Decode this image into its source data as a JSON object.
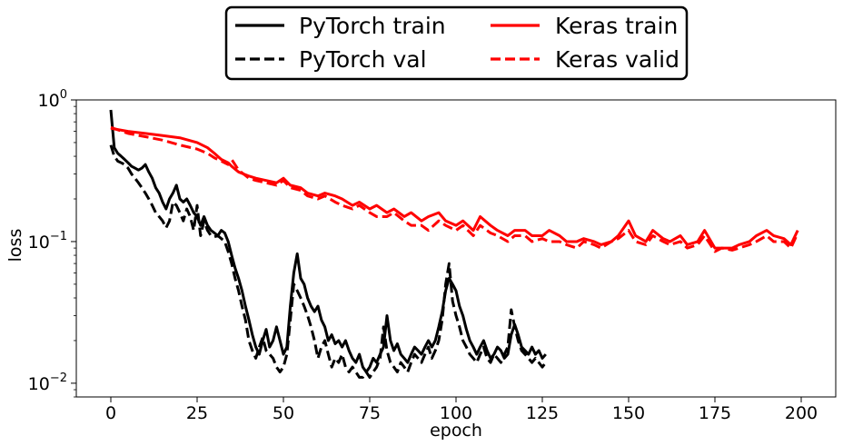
{
  "chart_data": {
    "type": "line",
    "title": "",
    "xlabel": "epoch",
    "ylabel": "loss",
    "xlim": [
      -10,
      210
    ],
    "ylim": [
      0.008,
      1.0
    ],
    "yscale": "log",
    "grid": false,
    "legend_position": "top-center",
    "x_ticks": [
      0,
      25,
      50,
      75,
      100,
      125,
      150,
      175,
      200
    ],
    "x_tick_labels": [
      "0",
      "25",
      "50",
      "75",
      "100",
      "125",
      "150",
      "175",
      "200"
    ],
    "y_ticks": [
      0.01,
      0.1,
      1.0
    ],
    "y_tick_labels": [
      {
        "base": "10",
        "exp": "−2"
      },
      {
        "base": "10",
        "exp": "−1"
      },
      {
        "base": "10",
        "exp": "0"
      }
    ],
    "series": [
      {
        "name": "PyTorch train",
        "color": "#000000",
        "dash": "solid",
        "x": [
          0,
          1,
          2,
          3,
          4,
          5,
          6,
          7,
          8,
          9,
          10,
          11,
          12,
          13,
          14,
          15,
          16,
          17,
          18,
          19,
          20,
          21,
          22,
          23,
          24,
          25,
          26,
          27,
          28,
          29,
          30,
          31,
          32,
          33,
          34,
          35,
          36,
          37,
          38,
          39,
          40,
          41,
          42,
          43,
          44,
          45,
          46,
          47,
          48,
          49,
          50,
          51,
          52,
          53,
          54,
          55,
          56,
          57,
          58,
          59,
          60,
          61,
          62,
          63,
          64,
          65,
          66,
          67,
          68,
          69,
          70,
          71,
          72,
          73,
          74,
          75,
          76,
          77,
          78,
          79,
          80,
          81,
          82,
          83,
          84,
          85,
          86,
          87,
          88,
          89,
          90,
          91,
          92,
          93,
          94,
          95,
          96,
          97,
          98,
          99,
          100,
          101,
          102,
          103,
          104,
          105,
          106,
          107,
          108,
          109,
          110,
          111,
          112,
          113,
          114,
          115,
          116,
          117,
          118,
          119,
          120,
          121,
          122,
          123,
          124,
          125,
          126
        ],
        "y": [
          0.85,
          0.46,
          0.42,
          0.4,
          0.38,
          0.36,
          0.34,
          0.33,
          0.32,
          0.33,
          0.35,
          0.31,
          0.28,
          0.24,
          0.22,
          0.19,
          0.17,
          0.2,
          0.22,
          0.25,
          0.2,
          0.19,
          0.2,
          0.18,
          0.16,
          0.15,
          0.13,
          0.15,
          0.13,
          0.12,
          0.115,
          0.11,
          0.12,
          0.115,
          0.1,
          0.08,
          0.065,
          0.055,
          0.045,
          0.035,
          0.028,
          0.022,
          0.018,
          0.016,
          0.02,
          0.024,
          0.018,
          0.02,
          0.025,
          0.02,
          0.016,
          0.018,
          0.035,
          0.06,
          0.082,
          0.055,
          0.05,
          0.04,
          0.035,
          0.032,
          0.035,
          0.028,
          0.025,
          0.02,
          0.022,
          0.019,
          0.02,
          0.018,
          0.02,
          0.017,
          0.015,
          0.014,
          0.016,
          0.013,
          0.012,
          0.013,
          0.015,
          0.014,
          0.016,
          0.018,
          0.03,
          0.02,
          0.017,
          0.019,
          0.016,
          0.015,
          0.014,
          0.016,
          0.018,
          0.017,
          0.016,
          0.018,
          0.02,
          0.018,
          0.02,
          0.025,
          0.032,
          0.045,
          0.055,
          0.05,
          0.045,
          0.035,
          0.03,
          0.024,
          0.02,
          0.018,
          0.016,
          0.018,
          0.02,
          0.017,
          0.015,
          0.016,
          0.018,
          0.017,
          0.015,
          0.016,
          0.022,
          0.026,
          0.022,
          0.018,
          0.017,
          0.016,
          0.018,
          0.016,
          0.017,
          0.015,
          0.016
        ]
      },
      {
        "name": "PyTorch val",
        "color": "#000000",
        "dash": "dashed",
        "x": [
          0,
          1,
          2,
          3,
          4,
          5,
          6,
          7,
          8,
          9,
          10,
          11,
          12,
          13,
          14,
          15,
          16,
          17,
          18,
          19,
          20,
          21,
          22,
          23,
          24,
          25,
          26,
          27,
          28,
          29,
          30,
          31,
          32,
          33,
          34,
          35,
          36,
          37,
          38,
          39,
          40,
          41,
          42,
          43,
          44,
          45,
          46,
          47,
          48,
          49,
          50,
          51,
          52,
          53,
          54,
          55,
          56,
          57,
          58,
          59,
          60,
          61,
          62,
          63,
          64,
          65,
          66,
          67,
          68,
          69,
          70,
          71,
          72,
          73,
          74,
          75,
          76,
          77,
          78,
          79,
          80,
          81,
          82,
          83,
          84,
          85,
          86,
          87,
          88,
          89,
          90,
          91,
          92,
          93,
          94,
          95,
          96,
          97,
          98,
          99,
          100,
          101,
          102,
          103,
          104,
          105,
          106,
          107,
          108,
          109,
          110,
          111,
          112,
          113,
          114,
          115,
          116,
          117,
          118,
          119,
          120,
          121,
          122,
          123,
          124,
          125,
          126
        ],
        "y": [
          0.48,
          0.4,
          0.37,
          0.36,
          0.35,
          0.33,
          0.3,
          0.28,
          0.26,
          0.24,
          0.22,
          0.2,
          0.18,
          0.16,
          0.15,
          0.14,
          0.125,
          0.14,
          0.19,
          0.18,
          0.16,
          0.14,
          0.17,
          0.15,
          0.12,
          0.18,
          0.11,
          0.14,
          0.12,
          0.11,
          0.108,
          0.11,
          0.105,
          0.1,
          0.085,
          0.07,
          0.055,
          0.045,
          0.035,
          0.028,
          0.02,
          0.017,
          0.015,
          0.018,
          0.021,
          0.017,
          0.016,
          0.015,
          0.013,
          0.012,
          0.013,
          0.016,
          0.028,
          0.05,
          0.045,
          0.04,
          0.035,
          0.03,
          0.025,
          0.02,
          0.015,
          0.018,
          0.02,
          0.016,
          0.013,
          0.015,
          0.014,
          0.016,
          0.013,
          0.012,
          0.013,
          0.012,
          0.011,
          0.011,
          0.012,
          0.011,
          0.012,
          0.013,
          0.015,
          0.025,
          0.017,
          0.014,
          0.013,
          0.012,
          0.014,
          0.013,
          0.012,
          0.014,
          0.016,
          0.015,
          0.014,
          0.016,
          0.018,
          0.015,
          0.017,
          0.02,
          0.028,
          0.05,
          0.07,
          0.038,
          0.03,
          0.025,
          0.02,
          0.018,
          0.016,
          0.015,
          0.014,
          0.016,
          0.018,
          0.015,
          0.014,
          0.016,
          0.015,
          0.014,
          0.016,
          0.018,
          0.033,
          0.025,
          0.02,
          0.017,
          0.016,
          0.015,
          0.014,
          0.015,
          0.014,
          0.013,
          0.014
        ]
      },
      {
        "name": "Keras train",
        "color": "#ff0000",
        "dash": "solid",
        "x": [
          0,
          5,
          10,
          15,
          20,
          25,
          28,
          30,
          32,
          34,
          35,
          37,
          40,
          42,
          45,
          48,
          50,
          52,
          55,
          57,
          60,
          62,
          65,
          67,
          70,
          72,
          75,
          77,
          80,
          82,
          85,
          87,
          90,
          92,
          95,
          97,
          100,
          102,
          105,
          107,
          110,
          112,
          115,
          117,
          120,
          122,
          125,
          127,
          130,
          132,
          135,
          137,
          140,
          142,
          145,
          147,
          150,
          152,
          155,
          157,
          160,
          162,
          165,
          167,
          170,
          172,
          175,
          177,
          180,
          182,
          185,
          187,
          190,
          192,
          195,
          197,
          199
        ],
        "y": [
          0.63,
          0.6,
          0.58,
          0.56,
          0.54,
          0.5,
          0.46,
          0.42,
          0.38,
          0.36,
          0.34,
          0.31,
          0.29,
          0.28,
          0.27,
          0.26,
          0.28,
          0.25,
          0.24,
          0.22,
          0.21,
          0.22,
          0.21,
          0.2,
          0.18,
          0.19,
          0.17,
          0.18,
          0.16,
          0.17,
          0.15,
          0.16,
          0.14,
          0.15,
          0.16,
          0.14,
          0.13,
          0.14,
          0.12,
          0.15,
          0.13,
          0.12,
          0.11,
          0.12,
          0.12,
          0.11,
          0.11,
          0.12,
          0.11,
          0.1,
          0.1,
          0.105,
          0.1,
          0.095,
          0.1,
          0.11,
          0.14,
          0.11,
          0.1,
          0.12,
          0.105,
          0.1,
          0.11,
          0.095,
          0.1,
          0.12,
          0.09,
          0.09,
          0.09,
          0.095,
          0.1,
          0.11,
          0.12,
          0.11,
          0.105,
          0.095,
          0.12
        ]
      },
      {
        "name": "Keras valid",
        "color": "#ff0000",
        "dash": "dashed",
        "x": [
          0,
          5,
          10,
          15,
          20,
          25,
          28,
          30,
          32,
          34,
          35,
          37,
          40,
          42,
          45,
          48,
          50,
          52,
          55,
          57,
          60,
          62,
          65,
          67,
          70,
          72,
          75,
          77,
          80,
          82,
          85,
          87,
          90,
          92,
          95,
          97,
          100,
          102,
          105,
          107,
          110,
          112,
          115,
          117,
          120,
          122,
          125,
          127,
          130,
          132,
          135,
          137,
          140,
          142,
          145,
          147,
          150,
          152,
          155,
          157,
          160,
          162,
          165,
          167,
          170,
          172,
          175,
          177,
          180,
          182,
          185,
          187,
          190,
          192,
          195,
          197,
          199
        ],
        "y": [
          0.64,
          0.58,
          0.55,
          0.52,
          0.48,
          0.45,
          0.42,
          0.39,
          0.37,
          0.35,
          0.38,
          0.32,
          0.28,
          0.27,
          0.26,
          0.25,
          0.27,
          0.24,
          0.23,
          0.21,
          0.2,
          0.21,
          0.19,
          0.18,
          0.17,
          0.18,
          0.16,
          0.15,
          0.15,
          0.16,
          0.14,
          0.13,
          0.13,
          0.12,
          0.14,
          0.13,
          0.12,
          0.13,
          0.11,
          0.13,
          0.115,
          0.11,
          0.1,
          0.11,
          0.11,
          0.1,
          0.105,
          0.1,
          0.1,
          0.095,
          0.09,
          0.1,
          0.095,
          0.09,
          0.1,
          0.105,
          0.12,
          0.1,
          0.095,
          0.11,
          0.1,
          0.095,
          0.1,
          0.09,
          0.095,
          0.11,
          0.085,
          0.09,
          0.087,
          0.09,
          0.095,
          0.1,
          0.11,
          0.1,
          0.1,
          0.09,
          0.115
        ]
      }
    ]
  }
}
